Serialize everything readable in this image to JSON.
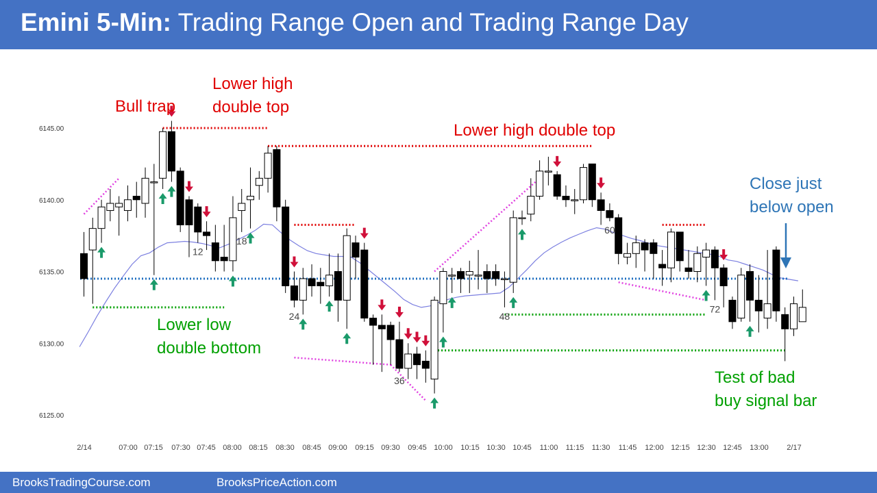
{
  "header": {
    "title_bold": "Emini 5-Min:",
    "title_rest": "Trading Range Open and Trading Range Day"
  },
  "footer": {
    "left": "BrooksTradingCourse.com",
    "right": "BrooksPriceAction.com"
  },
  "colors": {
    "banner": "#4472c4",
    "bull": "#ffffff",
    "bear": "#000000",
    "ema": "#7b7fe0",
    "red": "#e00000",
    "green": "#00a000",
    "blue_dotted": "#1f6fc0",
    "magenta": "#e040e0",
    "arrow_up": "#1a9a6a",
    "arrow_down": "#d0103a",
    "annot_blue": "#2e75b6"
  },
  "chart_data": {
    "type": "candlestick",
    "ylim": [
      6124,
      6148
    ],
    "yticks": [
      "6125.00",
      "6130.00",
      "6135.00",
      "6140.00",
      "6145.00"
    ],
    "xticks": [
      "2/14",
      "07:00",
      "07:15",
      "07:30",
      "07:45",
      "08:00",
      "08:15",
      "08:30",
      "08:45",
      "09:00",
      "09:15",
      "09:30",
      "09:45",
      "10:00",
      "10:15",
      "10:30",
      "10:45",
      "11:00",
      "11:15",
      "11:30",
      "11:45",
      "12:00",
      "12:15",
      "12:30",
      "12:45",
      "13:00",
      "2/17"
    ],
    "bars": [
      [
        6136.25,
        6134.5,
        6133.25,
        6137.75
      ],
      [
        6136.5,
        6138.0,
        6132.75,
        6138.75
      ],
      [
        6138.0,
        6139.5,
        6137.0,
        6140.0
      ],
      [
        6139.25,
        6139.75,
        6138.5,
        6140.75
      ],
      [
        6139.5,
        6139.75,
        6137.5,
        6140.25
      ],
      [
        6139.25,
        6140.0,
        6138.5,
        6141.0
      ],
      [
        6140.25,
        6140.0,
        6138.75,
        6141.25
      ],
      [
        6139.75,
        6141.5,
        6138.75,
        6142.25
      ],
      [
        6141.25,
        6141.25,
        6134.75,
        6142.5
      ],
      [
        6141.5,
        6144.75,
        6140.75,
        6145.0
      ],
      [
        6144.75,
        6142.0,
        6141.25,
        6145.5
      ],
      [
        6142.0,
        6138.25,
        6137.75,
        6142.25
      ],
      [
        6140.0,
        6138.25,
        6136.0,
        6140.25
      ],
      [
        6139.5,
        6137.75,
        6137.0,
        6139.75
      ],
      [
        6137.75,
        6137.5,
        6136.5,
        6138.5
      ],
      [
        6137.0,
        6135.75,
        6135.0,
        6138.25
      ],
      [
        6136.0,
        6135.75,
        6135.0,
        6138.25
      ],
      [
        6135.75,
        6138.75,
        6135.0,
        6140.25
      ],
      [
        6139.25,
        6139.75,
        6137.75,
        6140.75
      ],
      [
        6140.0,
        6140.25,
        6138.0,
        6142.25
      ],
      [
        6141.0,
        6141.5,
        6140.0,
        6142.0
      ],
      [
        6141.5,
        6143.25,
        6140.5,
        6143.75
      ],
      [
        6143.5,
        6139.5,
        6138.5,
        6143.75
      ],
      [
        6139.5,
        6134.0,
        6133.5,
        6140.0
      ],
      [
        6134.0,
        6133.0,
        6132.5,
        6135.0
      ],
      [
        6133.0,
        6134.5,
        6132.0,
        6135.25
      ],
      [
        6134.5,
        6134.0,
        6133.25,
        6135.5
      ],
      [
        6134.25,
        6134.0,
        6132.75,
        6135.25
      ],
      [
        6134.0,
        6134.75,
        6133.25,
        6136.25
      ],
      [
        6135.0,
        6133.0,
        6131.5,
        6136.25
      ],
      [
        6133.0,
        6137.5,
        6131.0,
        6138.0
      ],
      [
        6137.0,
        6136.0,
        6134.5,
        6137.5
      ],
      [
        6136.5,
        6131.75,
        6131.5,
        6137.0
      ],
      [
        6131.75,
        6131.25,
        6128.5,
        6132.0
      ],
      [
        6131.25,
        6131.0,
        6128.0,
        6132.0
      ],
      [
        6131.25,
        6130.25,
        6128.5,
        6131.5
      ],
      [
        6130.25,
        6128.25,
        6128.0,
        6131.5
      ],
      [
        6128.25,
        6129.25,
        6127.5,
        6130.0
      ],
      [
        6129.25,
        6128.5,
        6127.5,
        6129.75
      ],
      [
        6128.75,
        6128.25,
        6127.25,
        6129.5
      ],
      [
        6127.5,
        6133.0,
        6126.5,
        6133.25
      ],
      [
        6132.75,
        6135.0,
        6130.75,
        6135.25
      ],
      [
        6134.75,
        6134.75,
        6133.5,
        6135.25
      ],
      [
        6135.0,
        6134.5,
        6133.5,
        6135.25
      ],
      [
        6134.75,
        6135.0,
        6133.5,
        6135.75
      ],
      [
        6134.75,
        6134.75,
        6133.75,
        6136.5
      ],
      [
        6135.0,
        6134.5,
        6133.5,
        6135.5
      ],
      [
        6135.0,
        6134.5,
        6134.0,
        6135.5
      ],
      [
        6134.5,
        6134.5,
        6132.5,
        6135.0
      ],
      [
        6134.25,
        6138.75,
        6133.5,
        6139.25
      ],
      [
        6138.75,
        6138.75,
        6138.25,
        6139.25
      ],
      [
        6139.0,
        6140.25,
        6138.5,
        6141.5
      ],
      [
        6140.25,
        6142.0,
        6140.0,
        6142.75
      ],
      [
        6142.0,
        6142.0,
        6141.0,
        6143.0
      ],
      [
        6141.75,
        6140.25,
        6140.0,
        6142.0
      ],
      [
        6140.25,
        6140.0,
        6139.5,
        6141.0
      ],
      [
        6140.0,
        6140.0,
        6139.0,
        6140.75
      ],
      [
        6140.0,
        6142.25,
        6139.75,
        6142.5
      ],
      [
        6142.5,
        6140.0,
        6139.5,
        6142.5
      ],
      [
        6140.0,
        6139.25,
        6138.25,
        6140.5
      ],
      [
        6139.25,
        6138.75,
        6138.5,
        6139.75
      ],
      [
        6138.75,
        6136.25,
        6135.5,
        6139.0
      ],
      [
        6136.0,
        6136.25,
        6135.5,
        6137.0
      ],
      [
        6136.25,
        6137.0,
        6135.25,
        6137.5
      ],
      [
        6137.0,
        6136.5,
        6135.0,
        6137.25
      ],
      [
        6137.0,
        6136.25,
        6134.5,
        6137.25
      ],
      [
        6135.5,
        6135.25,
        6134.0,
        6136.5
      ],
      [
        6135.25,
        6137.75,
        6134.25,
        6138.0
      ],
      [
        6137.75,
        6135.75,
        6135.0,
        6137.75
      ],
      [
        6135.25,
        6135.0,
        6134.5,
        6136.5
      ],
      [
        6135.0,
        6136.25,
        6134.25,
        6136.75
      ],
      [
        6136.0,
        6136.5,
        6134.0,
        6137.0
      ],
      [
        6136.5,
        6135.25,
        6133.0,
        6136.75
      ],
      [
        6135.25,
        6134.0,
        6132.5,
        6135.5
      ],
      [
        6133.0,
        6131.5,
        6131.0,
        6133.25
      ],
      [
        6131.75,
        6134.75,
        6131.5,
        6135.25
      ],
      [
        6135.0,
        6133.0,
        6131.5,
        6135.5
      ],
      [
        6133.0,
        6132.25,
        6130.75,
        6134.75
      ],
      [
        6131.75,
        6132.75,
        6131.0,
        6136.5
      ],
      [
        6136.5,
        6132.25,
        6131.5,
        6136.75
      ],
      [
        6132.0,
        6131.0,
        6128.75,
        6132.5
      ],
      [
        6131.0,
        6132.75,
        6130.5,
        6133.25
      ],
      [
        6131.5,
        6132.5,
        6131.5,
        6133.75
      ]
    ],
    "ema": [
      6129.75,
      6130.8,
      6131.9,
      6132.9,
      6133.85,
      6134.7,
      6135.5,
      6136.1,
      6136.3,
      6136.7,
      6137.0,
      6137.05,
      6137.1,
      6137.05,
      6136.95,
      6136.8,
      6136.65,
      6136.9,
      6137.2,
      6137.5,
      6137.85,
      6138.3,
      6138.25,
      6137.7,
      6137.2,
      6136.8,
      6136.45,
      6136.25,
      6136.15,
      6136.05,
      6136.05,
      6136.0,
      6135.6,
      6135.1,
      6134.6,
      6134.1,
      6133.6,
      6133.05,
      6132.7,
      6132.5,
      6132.6,
      6132.85,
      6133.05,
      6133.2,
      6133.3,
      6133.35,
      6133.4,
      6133.45,
      6133.5,
      6133.9,
      6134.5,
      6135.1,
      6135.75,
      6136.3,
      6136.7,
      6137.05,
      6137.35,
      6137.6,
      6137.85,
      6138.05,
      6137.95,
      6137.7,
      6137.5,
      6137.3,
      6137.15,
      6136.95,
      6136.8,
      6136.7,
      6136.6,
      6136.5,
      6136.4,
      6136.3,
      6136.2,
      6136.05,
      6135.8,
      6135.7,
      6135.5,
      6135.3,
      6135.1,
      6134.8,
      6134.55,
      6134.45,
      6134.35
    ],
    "bar_labels": [
      {
        "bar": 13,
        "text": "12"
      },
      {
        "bar": 18,
        "text": "18"
      },
      {
        "bar": 24,
        "text": "24"
      },
      {
        "bar": 36,
        "text": "36"
      },
      {
        "bar": 48,
        "text": "48"
      },
      {
        "bar": 60,
        "text": "60"
      },
      {
        "bar": 72,
        "text": "72"
      }
    ],
    "annotations": [
      {
        "text": "Bull trap",
        "color": "red"
      },
      {
        "lines": [
          "Lower high",
          "double top"
        ],
        "color": "red"
      },
      {
        "text": "Lower high double top",
        "color": "red"
      },
      {
        "lines": [
          "Lower low",
          "double bottom"
        ],
        "color": "green"
      },
      {
        "lines": [
          "Close just",
          "below open"
        ],
        "color": "blue"
      },
      {
        "lines": [
          "Test of bad",
          "buy signal bar"
        ],
        "color": "green"
      }
    ],
    "up_arrows": [
      2,
      8,
      9,
      10,
      17,
      19,
      25,
      28,
      30,
      40,
      41,
      42,
      49,
      50,
      71,
      76
    ],
    "down_arrows": [
      10,
      12,
      14,
      24,
      32,
      34,
      36,
      37,
      38,
      39,
      54,
      59,
      73
    ],
    "levels": [
      {
        "kind": "blue-dotted",
        "y": 6134.5,
        "from": 0,
        "to": 83
      },
      {
        "kind": "red-dotted",
        "y": 6145.0,
        "from": 9,
        "to": 21
      },
      {
        "kind": "red-dotted",
        "y": 6143.75,
        "from": 21,
        "to": 58
      },
      {
        "kind": "red-dotted",
        "y": 6138.25,
        "from": 24,
        "to": 31
      },
      {
        "kind": "red-dotted",
        "y": 6138.25,
        "from": 66,
        "to": 71
      },
      {
        "kind": "green-dotted",
        "y": 6132.5,
        "from": 1,
        "to": 16
      },
      {
        "kind": "green-dotted",
        "y": 6132.0,
        "from": 48,
        "to": 71
      },
      {
        "kind": "green-dotted",
        "y": 6129.5,
        "from": 40,
        "to": 80
      }
    ],
    "slants": [
      {
        "from": [
          0,
          6139.0
        ],
        "to": [
          4,
          6141.5
        ]
      },
      {
        "from": [
          24,
          6129.0
        ],
        "to": [
          35,
          6128.5
        ]
      },
      {
        "from": [
          35,
          6128.5
        ],
        "to": [
          39,
          6126.0
        ]
      },
      {
        "from": [
          40,
          6135.0
        ],
        "to": [
          52,
          6141.5
        ]
      },
      {
        "from": [
          61,
          6134.25
        ],
        "to": [
          71,
          6133.0
        ]
      }
    ]
  }
}
